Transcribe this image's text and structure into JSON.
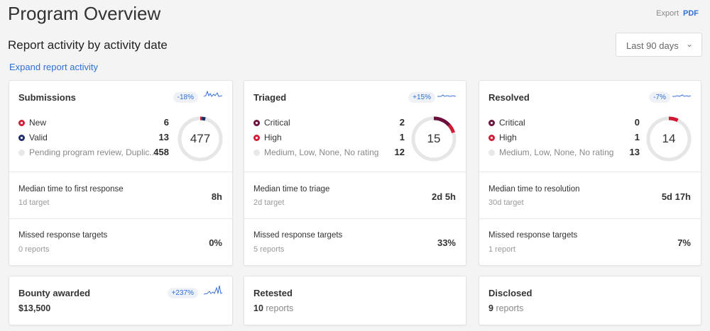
{
  "header": {
    "title": "Program Overview",
    "export_label": "Export",
    "pdf_label": "PDF"
  },
  "subtitle": "Report activity by activity date",
  "expand_link": "Expand report activity",
  "range": {
    "selected": "Last 90 days"
  },
  "colors": {
    "accent": "#2f6fd6",
    "critical": "#6b0f3c",
    "high": "#d01a33",
    "new": "#d01a33",
    "valid": "#1d2b6b",
    "other": "#e6e6e6"
  },
  "cards": [
    {
      "title": "Submissions",
      "trend": "-18%",
      "total": "477",
      "rows": [
        {
          "label": "New",
          "count": 6,
          "color": "#d01a33"
        },
        {
          "label": "Valid",
          "count": 13,
          "color": "#1d2b6b"
        },
        {
          "label": "Pending program review, Duplic...",
          "count": 458,
          "color": "#e0e0e0"
        }
      ],
      "metric1": {
        "label": "Median time to first response",
        "sub": "1d target",
        "value": "8h"
      },
      "metric2": {
        "label": "Missed response targets",
        "sub": "0 reports",
        "value": "0%"
      }
    },
    {
      "title": "Triaged",
      "trend": "+15%",
      "total": "15",
      "rows": [
        {
          "label": "Critical",
          "count": 2,
          "color": "#6b0f3c"
        },
        {
          "label": "High",
          "count": 1,
          "color": "#d01a33"
        },
        {
          "label": "Medium, Low, None, No rating",
          "count": 12,
          "color": "#e0e0e0"
        }
      ],
      "metric1": {
        "label": "Median time to triage",
        "sub": "2d target",
        "value": "2d 5h"
      },
      "metric2": {
        "label": "Missed response targets",
        "sub": "5 reports",
        "value": "33%"
      }
    },
    {
      "title": "Resolved",
      "trend": "-7%",
      "total": "14",
      "rows": [
        {
          "label": "Critical",
          "count": 0,
          "color": "#6b0f3c"
        },
        {
          "label": "High",
          "count": 1,
          "color": "#d01a33"
        },
        {
          "label": "Medium, Low, None, No rating",
          "count": 13,
          "color": "#e0e0e0"
        }
      ],
      "metric1": {
        "label": "Median time to resolution",
        "sub": "30d target",
        "value": "5d 17h"
      },
      "metric2": {
        "label": "Missed response targets",
        "sub": "1 report",
        "value": "7%"
      }
    }
  ],
  "bottom": [
    {
      "title": "Bounty awarded",
      "value": "$13,500",
      "unit": "",
      "trend": "+237%"
    },
    {
      "title": "Retested",
      "value": "10",
      "unit": "reports"
    },
    {
      "title": "Disclosed",
      "value": "9",
      "unit": "reports"
    }
  ]
}
